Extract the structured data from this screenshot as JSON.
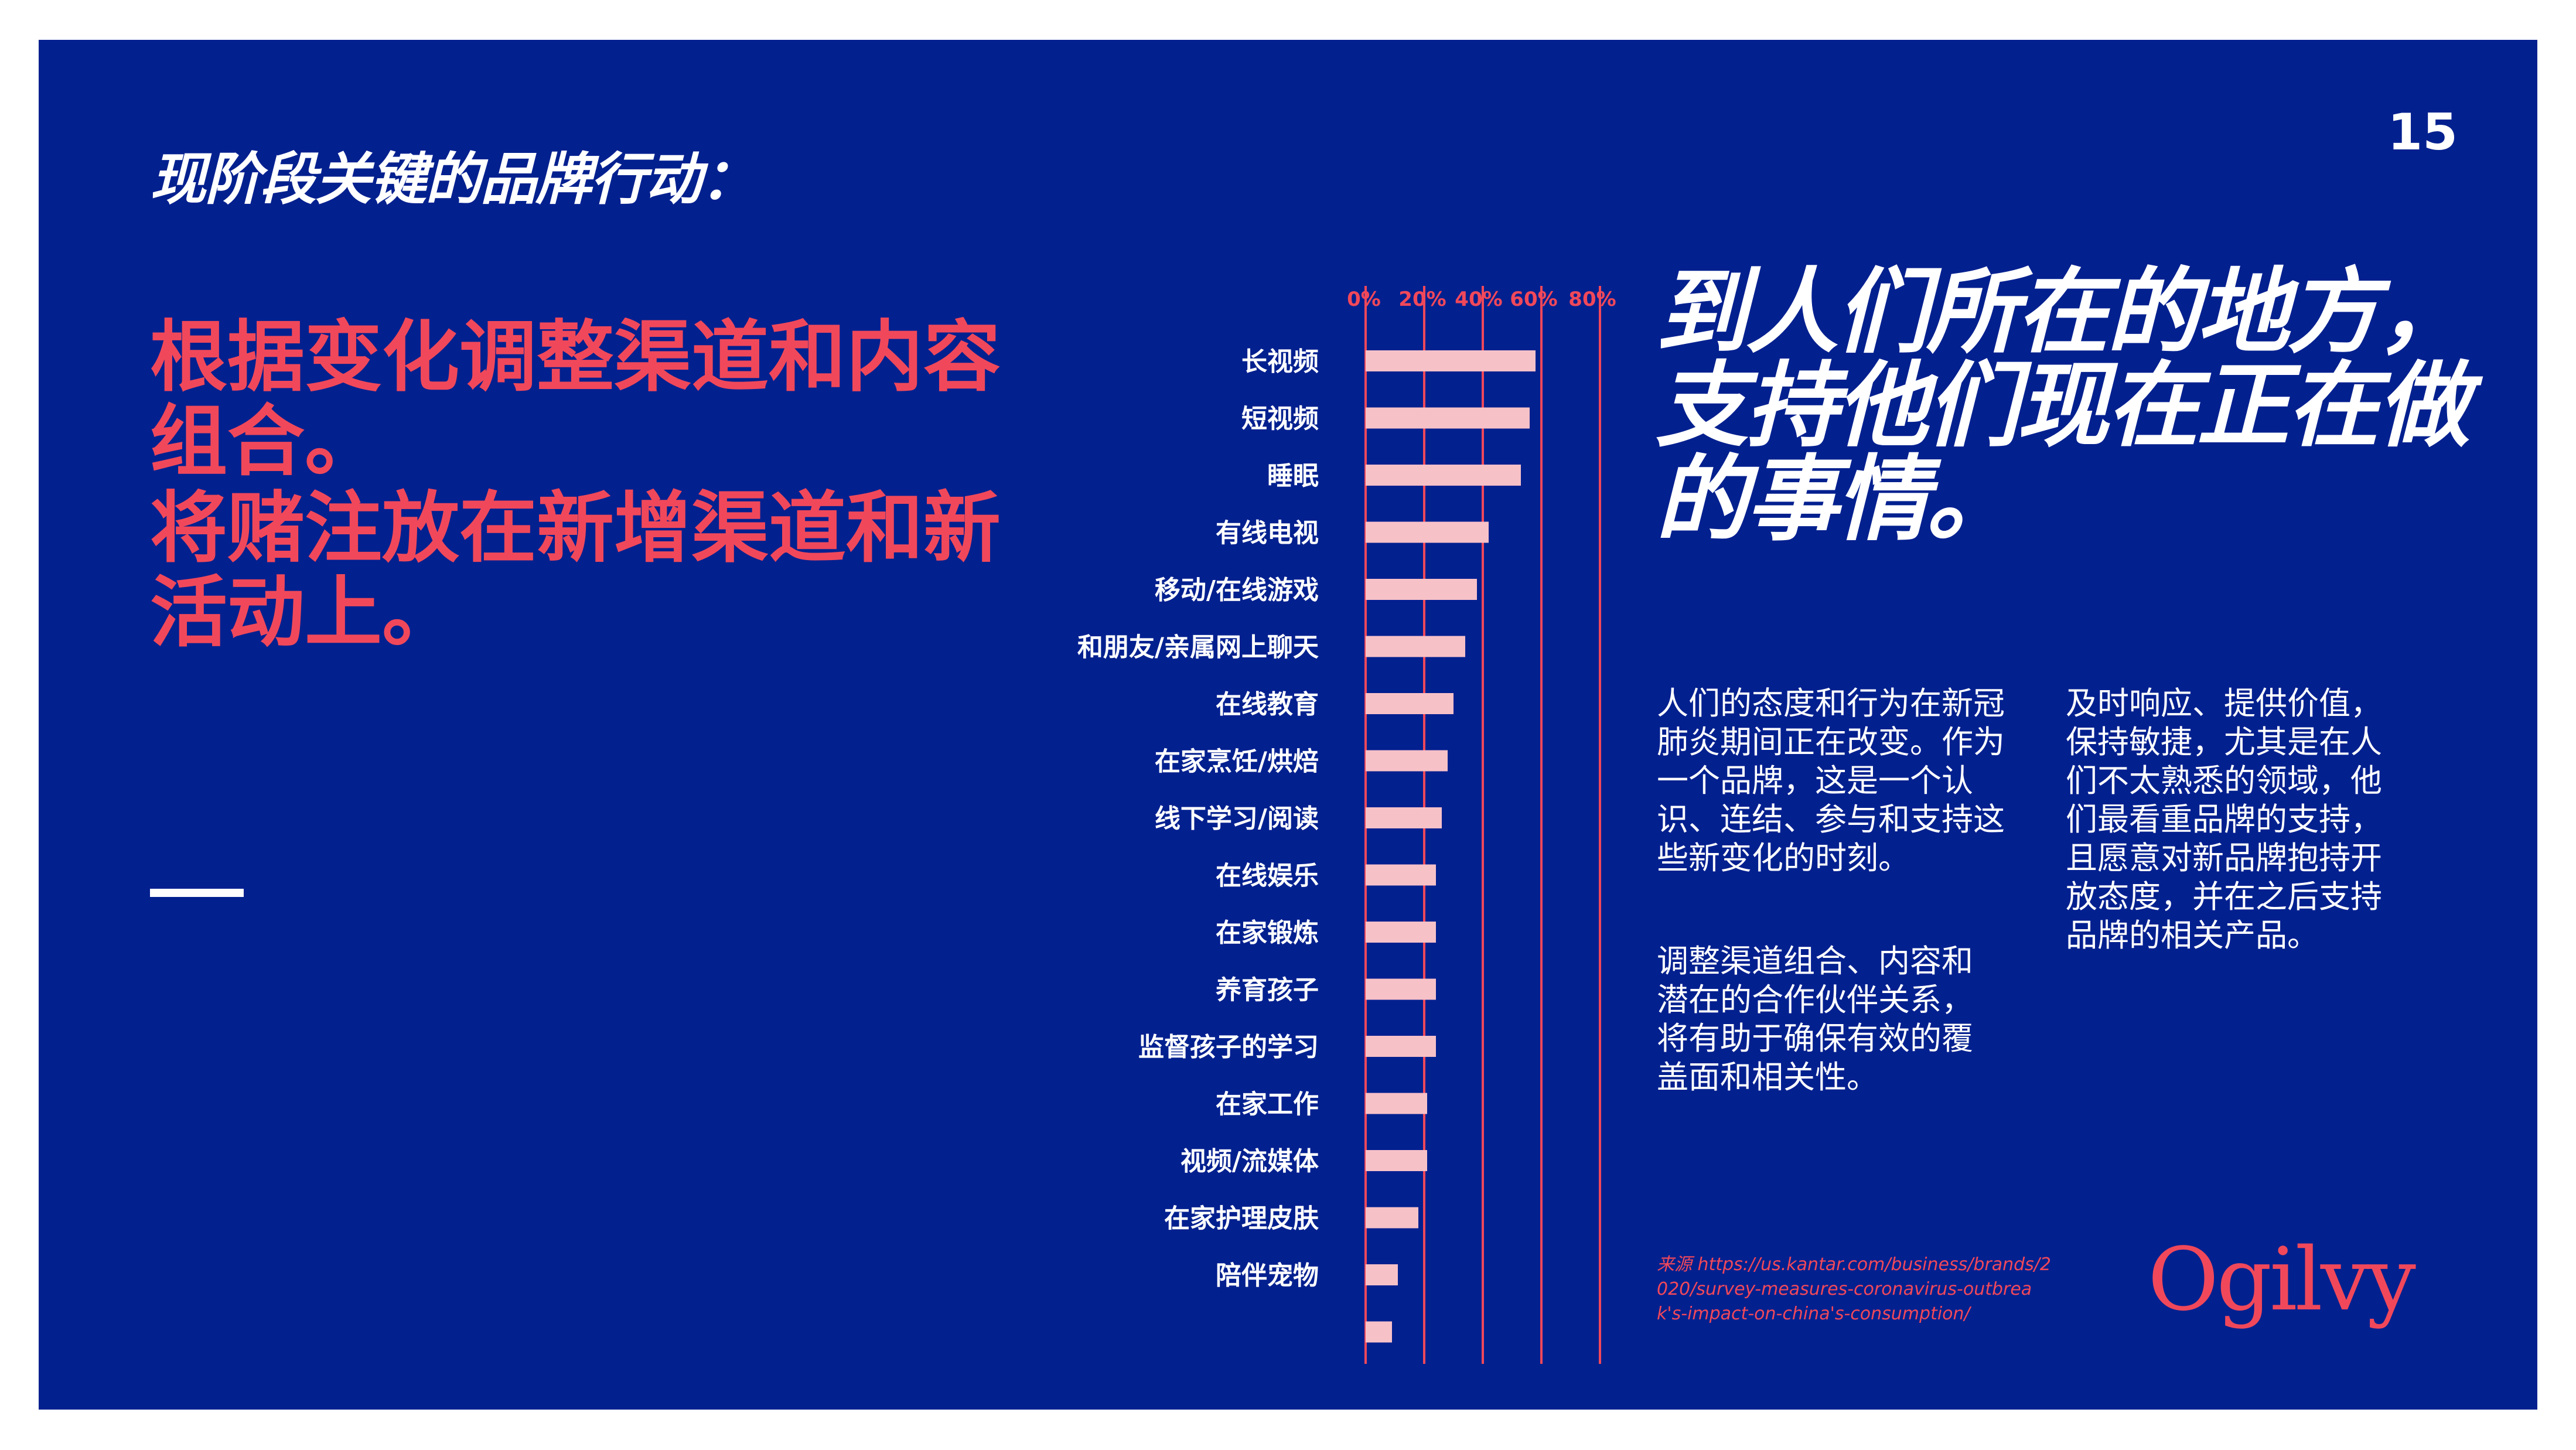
{
  "page": {
    "kicker": "现阶段关键的品牌行动：",
    "page_number": "15",
    "left_heading_1": "根据变化调整渠道和内容组合。",
    "left_heading_2": "将赌注放在新增渠道和新活动上。",
    "right_heading": "到人们所在的地方，支持他们现在正在做的事情。",
    "paragraph_1": "人们的态度和行为在新冠肺炎期间正在改变。作为一个品牌，这是一个认识、连结、参与和支持这些新变化的时刻。",
    "paragraph_2": "调整渠道组合、内容和潜在的合作伙伴关系，将有助于确保有效的覆盖面和相关性。",
    "paragraph_3": "及时响应、提供价值，保持敏捷，尤其是在人们不太熟悉的领域，他们最看重品牌的支持，且愿意对新品牌抱持开放态度，并在之后支持品牌的相关产品。",
    "source": "来源 https://us.kantar.com/business/brands/2020/survey-measures-coronavirus-outbreak's-impact-on-china's-consumption/",
    "logo": "Ogilvy"
  },
  "colors": {
    "background": "#03208f",
    "accent_red": "#f0485a",
    "bar_pink": "#f7c1c8",
    "text_white": "#ffffff"
  },
  "chart_data": {
    "type": "bar",
    "orientation": "horizontal",
    "x_ticks": [
      "0%",
      "20%",
      "40%",
      "60%",
      "80%"
    ],
    "xlim": [
      0,
      80
    ],
    "gridlines": [
      0,
      20,
      40,
      60,
      80
    ],
    "categories": [
      "长视频",
      "短视频",
      "睡眠",
      "有线电视",
      "移动/在线游戏",
      "和朋友/亲属网上聊天",
      "在线教育",
      "在家烹饪/烘焙",
      "线下学习/阅读",
      "在线娱乐",
      "在家锻炼",
      "养育孩子",
      "监督孩子的学习",
      "在家工作",
      "视频/流媒体",
      "在家护理皮肤",
      "陪伴宠物",
      ""
    ],
    "values": [
      58,
      56,
      53,
      42,
      38,
      34,
      30,
      28,
      26,
      24,
      24,
      24,
      24,
      21,
      21,
      18,
      11,
      9
    ]
  }
}
